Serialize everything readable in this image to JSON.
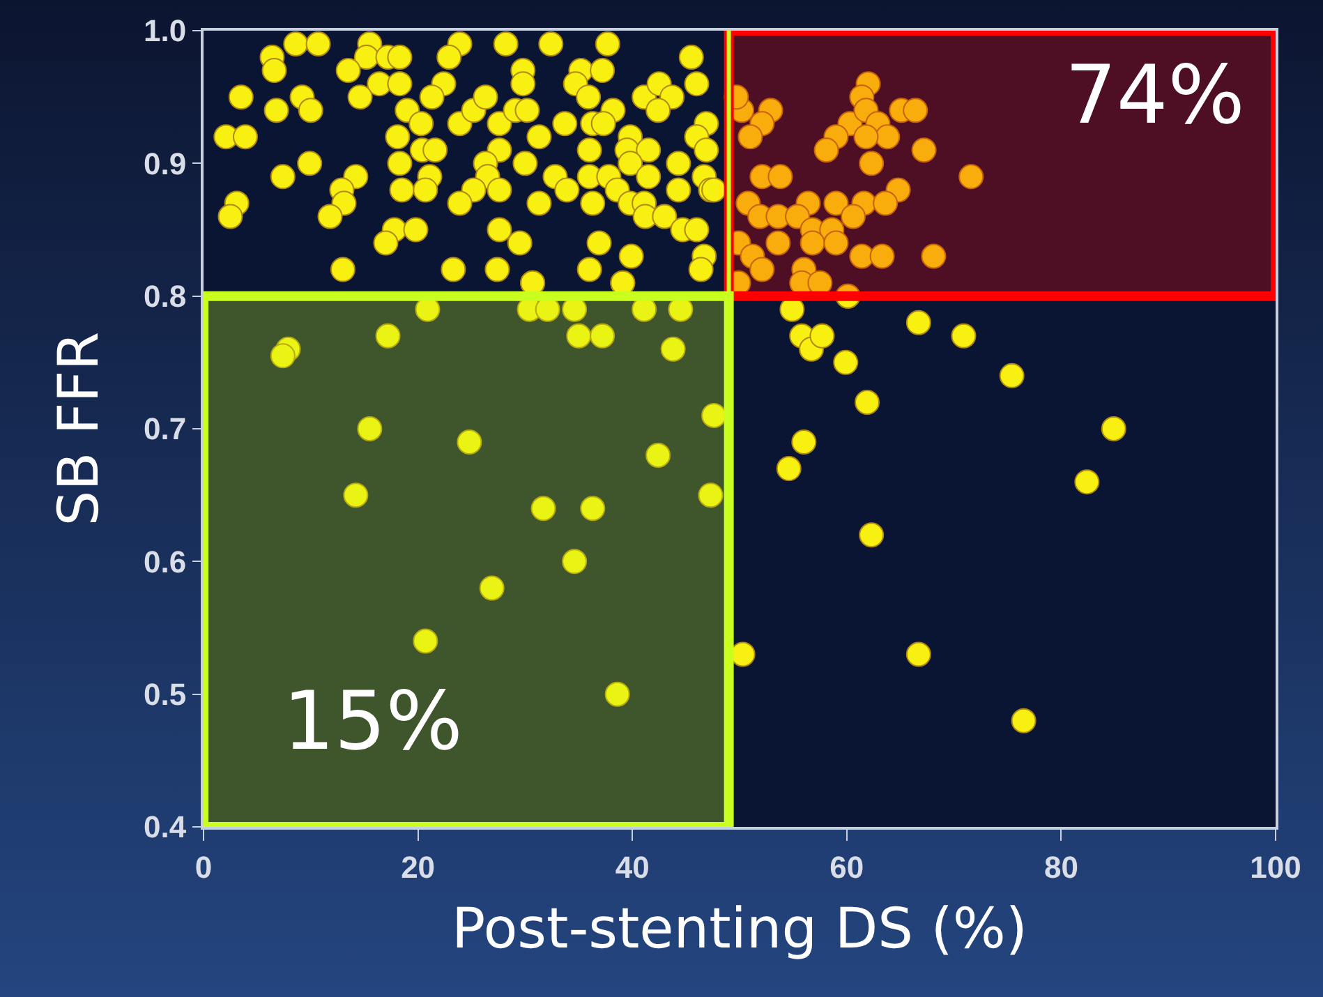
{
  "chart_data": {
    "type": "scatter",
    "xlabel": "Post-stenting DS (%)",
    "ylabel": "SB FFR",
    "xlim": [
      0,
      100
    ],
    "xticks": [
      0,
      20,
      40,
      60,
      80,
      100
    ],
    "ylim": [
      0.4,
      1.0
    ],
    "yticks": [
      0.4,
      0.5,
      0.6,
      0.7,
      0.8,
      0.9,
      {
        "value": 1.0,
        "label": "1.0"
      }
    ],
    "marker": "circle",
    "ref_lines": [
      {
        "axis": "x",
        "value": 49,
        "color": "#c8ff1e"
      }
    ],
    "bands": [
      {
        "axis": "y",
        "from": 0.8,
        "to": 1.0,
        "label": "74%",
        "color": "#ff0000"
      },
      {
        "axis": "y",
        "from": 0.4,
        "to": 0.8,
        "label": "15%",
        "color": "#c8ff1e"
      }
    ],
    "series": [
      {
        "color": "#f7f011",
        "x": [
          8.6,
          10.7,
          6.4,
          6.6,
          3.5,
          6.8,
          9.2,
          10.0,
          2.1,
          3.9,
          7.4,
          9.9,
          3.1,
          2.5,
          15.5,
          15.2,
          13.5,
          17.2,
          18.3,
          16.4,
          18.3,
          14.6,
          14.2,
          12.9,
          13.1,
          11.8,
          17.8,
          17.0,
          19.8,
          13.0,
          23.9,
          22.9,
          22.4,
          21.3,
          19.0,
          20.3,
          18.1,
          18.3,
          20.4,
          21.6,
          21.1,
          18.5,
          20.7,
          23.9,
          25.2,
          26.3,
          27.6,
          27.6,
          26.3,
          26.5,
          25.2,
          27.6,
          23.9,
          27.6,
          29.5,
          23.3,
          27.4,
          30.7,
          28.2,
          32.4,
          37.7,
          29.8,
          29.8,
          29.1,
          30.2,
          31.3,
          30.0,
          32.8,
          33.9,
          31.3,
          33.7,
          35.2,
          37.2,
          34.7,
          35.9,
          36.3,
          38.2,
          37.3,
          39.8,
          39.5,
          41.5,
          39.8,
          41.5,
          36.0,
          36.0,
          37.8,
          38.6,
          39.8,
          41.1,
          41.2,
          43.0,
          44.3,
          44.3,
          44.7,
          46.0,
          36.3,
          36.9,
          39.9,
          36.0,
          39.1,
          46.7,
          46.4,
          41.1,
          42.5,
          43.7,
          42.4,
          45.5,
          46.0,
          46.9,
          46.0,
          46.9,
          46.7,
          47.3,
          47.6,
          62.0,
          61.4,
          65.1,
          66.4,
          52.9,
          50.2,
          49.7,
          60.3,
          61.8,
          62.9,
          63.8,
          59.0,
          61.8,
          58.1,
          52.1,
          51.0,
          62.3,
          67.2,
          52.1,
          53.8,
          71.6,
          64.8,
          50.8,
          56.4,
          51.9,
          61.6,
          63.6,
          59.0,
          60.6,
          53.6,
          55.4,
          53.6,
          56.8,
          58.6,
          49.9,
          51.2,
          56.8,
          59.0,
          52.1,
          56.0,
          61.4,
          63.3,
          68.1,
          49.9,
          55.8,
          57.5,
          60.1,
          20.9,
          30.4,
          32.1,
          34.6,
          41.1,
          44.5,
          30.7,
          39.1,
          17.2,
          35.0,
          37.2,
          43.8,
          7.9,
          7.4,
          47.6,
          15.5,
          24.8,
          42.4,
          14.2,
          47.3,
          31.7,
          36.3,
          34.6,
          26.9,
          20.7,
          38.6,
          50.3,
          54.9,
          55.8,
          56.7,
          57.7,
          59.9,
          60.1,
          66.7,
          70.9,
          75.4,
          61.9,
          56.0,
          54.6,
          84.9,
          82.4,
          62.3,
          66.7,
          76.5
        ],
        "values": [
          0.99,
          0.99,
          0.98,
          0.97,
          0.95,
          0.94,
          0.95,
          0.94,
          0.92,
          0.92,
          0.89,
          0.9,
          0.87,
          0.86,
          0.99,
          0.98,
          0.97,
          0.98,
          0.98,
          0.96,
          0.96,
          0.95,
          0.89,
          0.88,
          0.87,
          0.86,
          0.85,
          0.84,
          0.85,
          0.82,
          0.99,
          0.98,
          0.96,
          0.95,
          0.94,
          0.93,
          0.92,
          0.9,
          0.91,
          0.91,
          0.89,
          0.88,
          0.88,
          0.93,
          0.94,
          0.95,
          0.93,
          0.91,
          0.9,
          0.89,
          0.88,
          0.88,
          0.87,
          0.85,
          0.84,
          0.82,
          0.82,
          0.81,
          0.99,
          0.99,
          0.99,
          0.97,
          0.96,
          0.94,
          0.94,
          0.92,
          0.9,
          0.89,
          0.88,
          0.87,
          0.93,
          0.97,
          0.97,
          0.96,
          0.95,
          0.93,
          0.94,
          0.93,
          0.92,
          0.91,
          0.91,
          0.9,
          0.89,
          0.91,
          0.89,
          0.89,
          0.88,
          0.87,
          0.87,
          0.86,
          0.86,
          0.9,
          0.88,
          0.85,
          0.85,
          0.87,
          0.84,
          0.83,
          0.82,
          0.81,
          0.83,
          0.82,
          0.95,
          0.96,
          0.95,
          0.94,
          0.98,
          0.96,
          0.93,
          0.92,
          0.91,
          0.89,
          0.88,
          0.88,
          0.96,
          0.95,
          0.94,
          0.94,
          0.94,
          0.94,
          0.95,
          0.93,
          0.94,
          0.93,
          0.92,
          0.92,
          0.92,
          0.91,
          0.93,
          0.92,
          0.9,
          0.91,
          0.89,
          0.89,
          0.89,
          0.88,
          0.87,
          0.87,
          0.86,
          0.87,
          0.87,
          0.87,
          0.86,
          0.86,
          0.86,
          0.84,
          0.85,
          0.85,
          0.84,
          0.83,
          0.84,
          0.84,
          0.82,
          0.82,
          0.83,
          0.83,
          0.83,
          0.81,
          0.81,
          0.81,
          0.8,
          0.79,
          0.79,
          0.79,
          0.79,
          0.79,
          0.79,
          0.81,
          0.81,
          0.77,
          0.77,
          0.77,
          0.76,
          0.76,
          0.755,
          0.71,
          0.7,
          0.69,
          0.68,
          0.65,
          0.65,
          0.64,
          0.64,
          0.6,
          0.58,
          0.54,
          0.5,
          0.53,
          0.79,
          0.77,
          0.76,
          0.77,
          0.75,
          0.8,
          0.78,
          0.77,
          0.74,
          0.72,
          0.69,
          0.67,
          0.7,
          0.66,
          0.62,
          0.53,
          0.48
        ]
      }
    ]
  }
}
